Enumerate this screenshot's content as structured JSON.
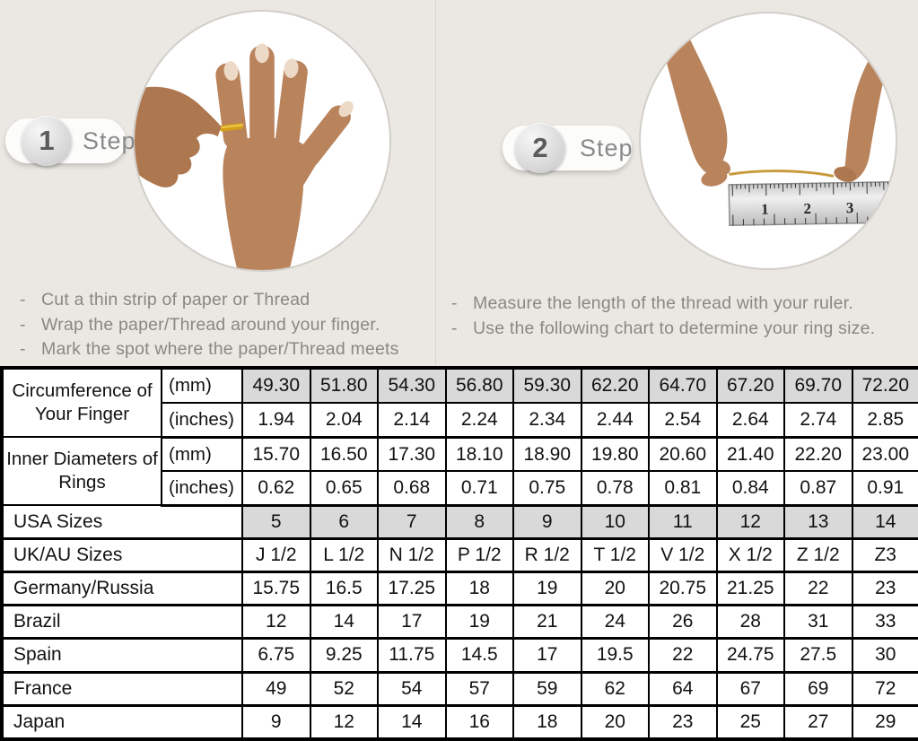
{
  "steps": [
    {
      "number": "1",
      "label": "Step",
      "instructions": [
        "Cut a thin strip of paper or Thread",
        "Wrap the paper/Thread around your finger.",
        "Mark the spot where the paper/Thread meets"
      ]
    },
    {
      "number": "2",
      "label": "Step",
      "instructions": [
        "Measure the length of the thread with your ruler.",
        "Use the following chart to determine your ring size."
      ]
    }
  ],
  "photos": {
    "step1": "hand-with-ring-photo",
    "step2": "measuring-thread-with-ruler-photo",
    "ruler_numbers": [
      "1",
      "2",
      "3"
    ]
  },
  "colors": {
    "page_background": "#ebe8e3",
    "highlight_cell": "#d9d9d9",
    "table_border": "#000000",
    "instruction_text": "#8b8884",
    "step_text": "#8a8a8a",
    "gold": "#d4a017",
    "skin": "#b9835c"
  },
  "table": {
    "rows": [
      {
        "type": "split",
        "group_label": "Circumference of Your Finger",
        "group_span": 2,
        "unit": "(mm)",
        "highlight": true,
        "thick": false,
        "values": [
          "49.30",
          "51.80",
          "54.30",
          "56.80",
          "59.30",
          "62.20",
          "64.70",
          "67.20",
          "69.70",
          "72.20"
        ]
      },
      {
        "type": "split",
        "unit": "(inches)",
        "highlight": false,
        "thick": true,
        "values": [
          "1.94",
          "2.04",
          "2.14",
          "2.24",
          "2.34",
          "2.44",
          "2.54",
          "2.64",
          "2.74",
          "2.85"
        ]
      },
      {
        "type": "split",
        "group_label": "Inner Diameters of Rings",
        "group_span": 2,
        "unit": "(mm)",
        "highlight": false,
        "thick": false,
        "values": [
          "15.70",
          "16.50",
          "17.30",
          "18.10",
          "18.90",
          "19.80",
          "20.60",
          "21.40",
          "22.20",
          "23.00"
        ]
      },
      {
        "type": "split",
        "unit": "(inches)",
        "highlight": false,
        "thick": true,
        "values": [
          "0.62",
          "0.65",
          "0.68",
          "0.71",
          "0.75",
          "0.78",
          "0.81",
          "0.84",
          "0.87",
          "0.91"
        ]
      },
      {
        "type": "full",
        "label": "USA Sizes",
        "highlight": true,
        "thick": true,
        "values": [
          "5",
          "6",
          "7",
          "8",
          "9",
          "10",
          "11",
          "12",
          "13",
          "14"
        ]
      },
      {
        "type": "full",
        "label": "UK/AU Sizes",
        "highlight": false,
        "thick": true,
        "values": [
          "J 1/2",
          "L 1/2",
          "N 1/2",
          "P 1/2",
          "R 1/2",
          "T 1/2",
          "V 1/2",
          "X 1/2",
          "Z 1/2",
          "Z3"
        ]
      },
      {
        "type": "full",
        "label": "Germany/Russia",
        "highlight": false,
        "thick": true,
        "values": [
          "15.75",
          "16.5",
          "17.25",
          "18",
          "19",
          "20",
          "20.75",
          "21.25",
          "22",
          "23"
        ]
      },
      {
        "type": "full",
        "label": "Brazil",
        "highlight": false,
        "thick": true,
        "values": [
          "12",
          "14",
          "17",
          "19",
          "21",
          "24",
          "26",
          "28",
          "31",
          "33"
        ]
      },
      {
        "type": "full",
        "label": "Spain",
        "highlight": false,
        "thick": true,
        "values": [
          "6.75",
          "9.25",
          "11.75",
          "14.5",
          "17",
          "19.5",
          "22",
          "24.75",
          "27.5",
          "30"
        ]
      },
      {
        "type": "full",
        "label": "France",
        "highlight": false,
        "thick": true,
        "values": [
          "49",
          "52",
          "54",
          "57",
          "59",
          "62",
          "64",
          "67",
          "69",
          "72"
        ]
      },
      {
        "type": "full",
        "label": "Japan",
        "highlight": false,
        "thick": false,
        "values": [
          "9",
          "12",
          "14",
          "16",
          "18",
          "20",
          "23",
          "25",
          "27",
          "29"
        ]
      }
    ]
  }
}
